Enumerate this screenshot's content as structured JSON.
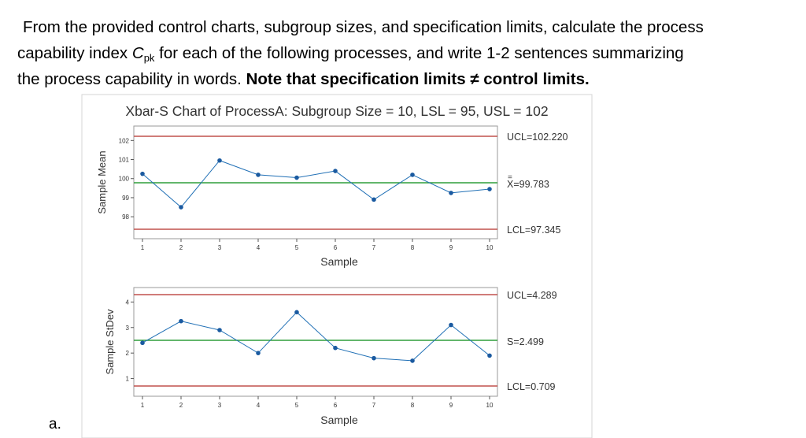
{
  "question": {
    "line1": "From the provided control charts, subgroup sizes, and specification limits, calculate the process",
    "line2_a": "capability index ",
    "cpk_C": "C",
    "cpk_sub": "pk",
    "line2_b": " for each of the following processes, and write 1-2 sentences summarizing",
    "line3_a": "the process capability in words.  ",
    "line3_bold": "Note that specification limits ≠ control limits."
  },
  "part_label": "a.",
  "chart_data": [
    {
      "type": "line",
      "title": "Xbar-S Chart of ProcessA: Subgroup Size = 10, LSL = 95, USL = 102",
      "xlabel": "Sample",
      "ylabel": "Sample Mean",
      "x": [
        1,
        2,
        3,
        4,
        5,
        6,
        7,
        8,
        9,
        10
      ],
      "values": [
        100.25,
        98.5,
        100.95,
        100.2,
        100.05,
        100.4,
        98.9,
        100.2,
        99.25,
        99.45
      ],
      "ylim": [
        97.345,
        102.22
      ],
      "yticks": [
        98,
        99,
        100,
        101,
        102
      ],
      "center_line": 99.783,
      "ucl": 102.22,
      "lcl": 97.345,
      "ucl_label": "UCL=102.220",
      "center_label": "X=99.783",
      "center_symbol": "=",
      "lcl_label": "LCL=97.345",
      "colors": {
        "series": "#1f6fb5",
        "center": "#2e9e3a",
        "limits": "#c0504d"
      }
    },
    {
      "type": "line",
      "xlabel": "Sample",
      "ylabel": "Sample StDev",
      "x": [
        1,
        2,
        3,
        4,
        5,
        6,
        7,
        8,
        9,
        10
      ],
      "values": [
        2.4,
        3.25,
        2.9,
        2.0,
        3.6,
        2.2,
        1.8,
        1.7,
        3.1,
        1.9
      ],
      "ylim": [
        0.709,
        4.289
      ],
      "yticks": [
        1,
        2,
        3,
        4
      ],
      "center_line": 2.499,
      "ucl": 4.289,
      "lcl": 0.709,
      "ucl_label": "UCL=4.289",
      "center_label": "S=2.499",
      "center_symbol": "_",
      "lcl_label": "LCL=0.709",
      "colors": {
        "series": "#1f6fb5",
        "center": "#2e9e3a",
        "limits": "#c0504d"
      }
    }
  ]
}
